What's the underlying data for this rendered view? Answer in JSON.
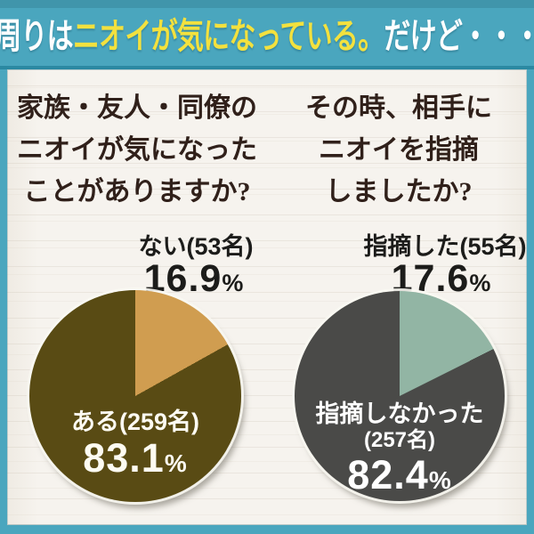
{
  "banner": {
    "segments": [
      {
        "text": "周りは"
      },
      {
        "text": "ニオイが気になっている。"
      },
      {
        "text": "だけど・・・"
      }
    ],
    "bg_color": "#4aa6be",
    "highlight_color": "#f3e13e",
    "text_color": "#ffffff"
  },
  "frame_color": "#4aa6be",
  "background_color": "#f6f3ee",
  "questions": {
    "left": {
      "lines": [
        "家族・友人・同僚の",
        "ニオイが気になった",
        "ことがありますか?"
      ]
    },
    "right": {
      "lines": [
        "その時、相手に",
        "ニオイを指摘",
        "しましたか?"
      ]
    }
  },
  "left_chart": {
    "callout_label": "ない(53名)",
    "callout_value": "16.9",
    "percent_sign": "%",
    "inner_label": "ある(259名)",
    "inner_value": "83.1"
  },
  "right_chart": {
    "callout_label": "指摘した(55名)",
    "callout_value": "17.6",
    "percent_sign": "%",
    "inner_label_line1": "指摘しなかった",
    "inner_label_line2": "(257名)",
    "inner_value": "82.4"
  },
  "chart_data": [
    {
      "type": "pie",
      "title": "家族・友人・同僚のニオイが気になったことがありますか?",
      "labels": [
        "ある",
        "ない"
      ],
      "counts": [
        259,
        53
      ],
      "values": [
        83.1,
        16.9
      ],
      "colors": [
        "#594b14",
        "#d09d50"
      ],
      "start_angle_deg": 0,
      "small_slice_position": "starts at 12 o'clock, clockwise",
      "legend_position": "labels on chart"
    },
    {
      "type": "pie",
      "title": "その時、相手にニオイを指摘しましたか?",
      "labels": [
        "指摘しなかった",
        "指摘した"
      ],
      "counts": [
        257,
        55
      ],
      "values": [
        82.4,
        17.6
      ],
      "colors": [
        "#4a4a48",
        "#92b5a4"
      ],
      "start_angle_deg": 0,
      "small_slice_position": "starts at 12 o'clock, clockwise",
      "legend_position": "labels on chart"
    }
  ]
}
